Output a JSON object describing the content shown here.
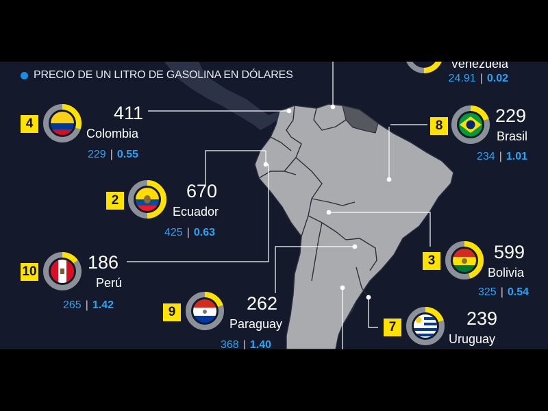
{
  "legend": {
    "text": "PRECIO DE UN LITRO DE GASOLINA EN DÓLARES"
  },
  "colors": {
    "ring": "#ffe200",
    "ring_bg": "#8c9099",
    "land": "#a9abae",
    "highlight": "#55585e",
    "accent": "#2aa4f4",
    "rank_bg": "#ffe200"
  },
  "countries": {
    "venezuela": {
      "name": "Venezuela",
      "stat_a": "24.91",
      "stat_b": "0.02",
      "ring_fraction": 0.5
    },
    "colombia": {
      "rank": "4",
      "value": "411",
      "name": "Colombia",
      "stat_a": "229",
      "stat_b": "0.55",
      "ring_fraction": 0.3
    },
    "brasil": {
      "rank": "8",
      "value": "229",
      "name": "Brasil",
      "stat_a": "234",
      "stat_b": "1.01",
      "ring_fraction": 0.2
    },
    "ecuador": {
      "rank": "2",
      "value": "670",
      "name": "Ecuador",
      "stat_a": "425",
      "stat_b": "0.63",
      "ring_fraction": 0.5
    },
    "peru": {
      "rank": "10",
      "value": "186",
      "name": "Perú",
      "stat_a": "265",
      "stat_b": "1.42",
      "ring_fraction": 0.15
    },
    "bolivia": {
      "rank": "3",
      "value": "599",
      "name": "Bolivia",
      "stat_a": "325",
      "stat_b": "0.54",
      "ring_fraction": 0.45
    },
    "paraguay": {
      "rank": "9",
      "value": "262",
      "name": "Paraguay",
      "stat_a": "368",
      "stat_b": "1.40",
      "ring_fraction": 0.2
    },
    "uruguay": {
      "rank": "7",
      "value": "239",
      "name": "Uruguay",
      "ring_fraction": 0.2
    }
  }
}
